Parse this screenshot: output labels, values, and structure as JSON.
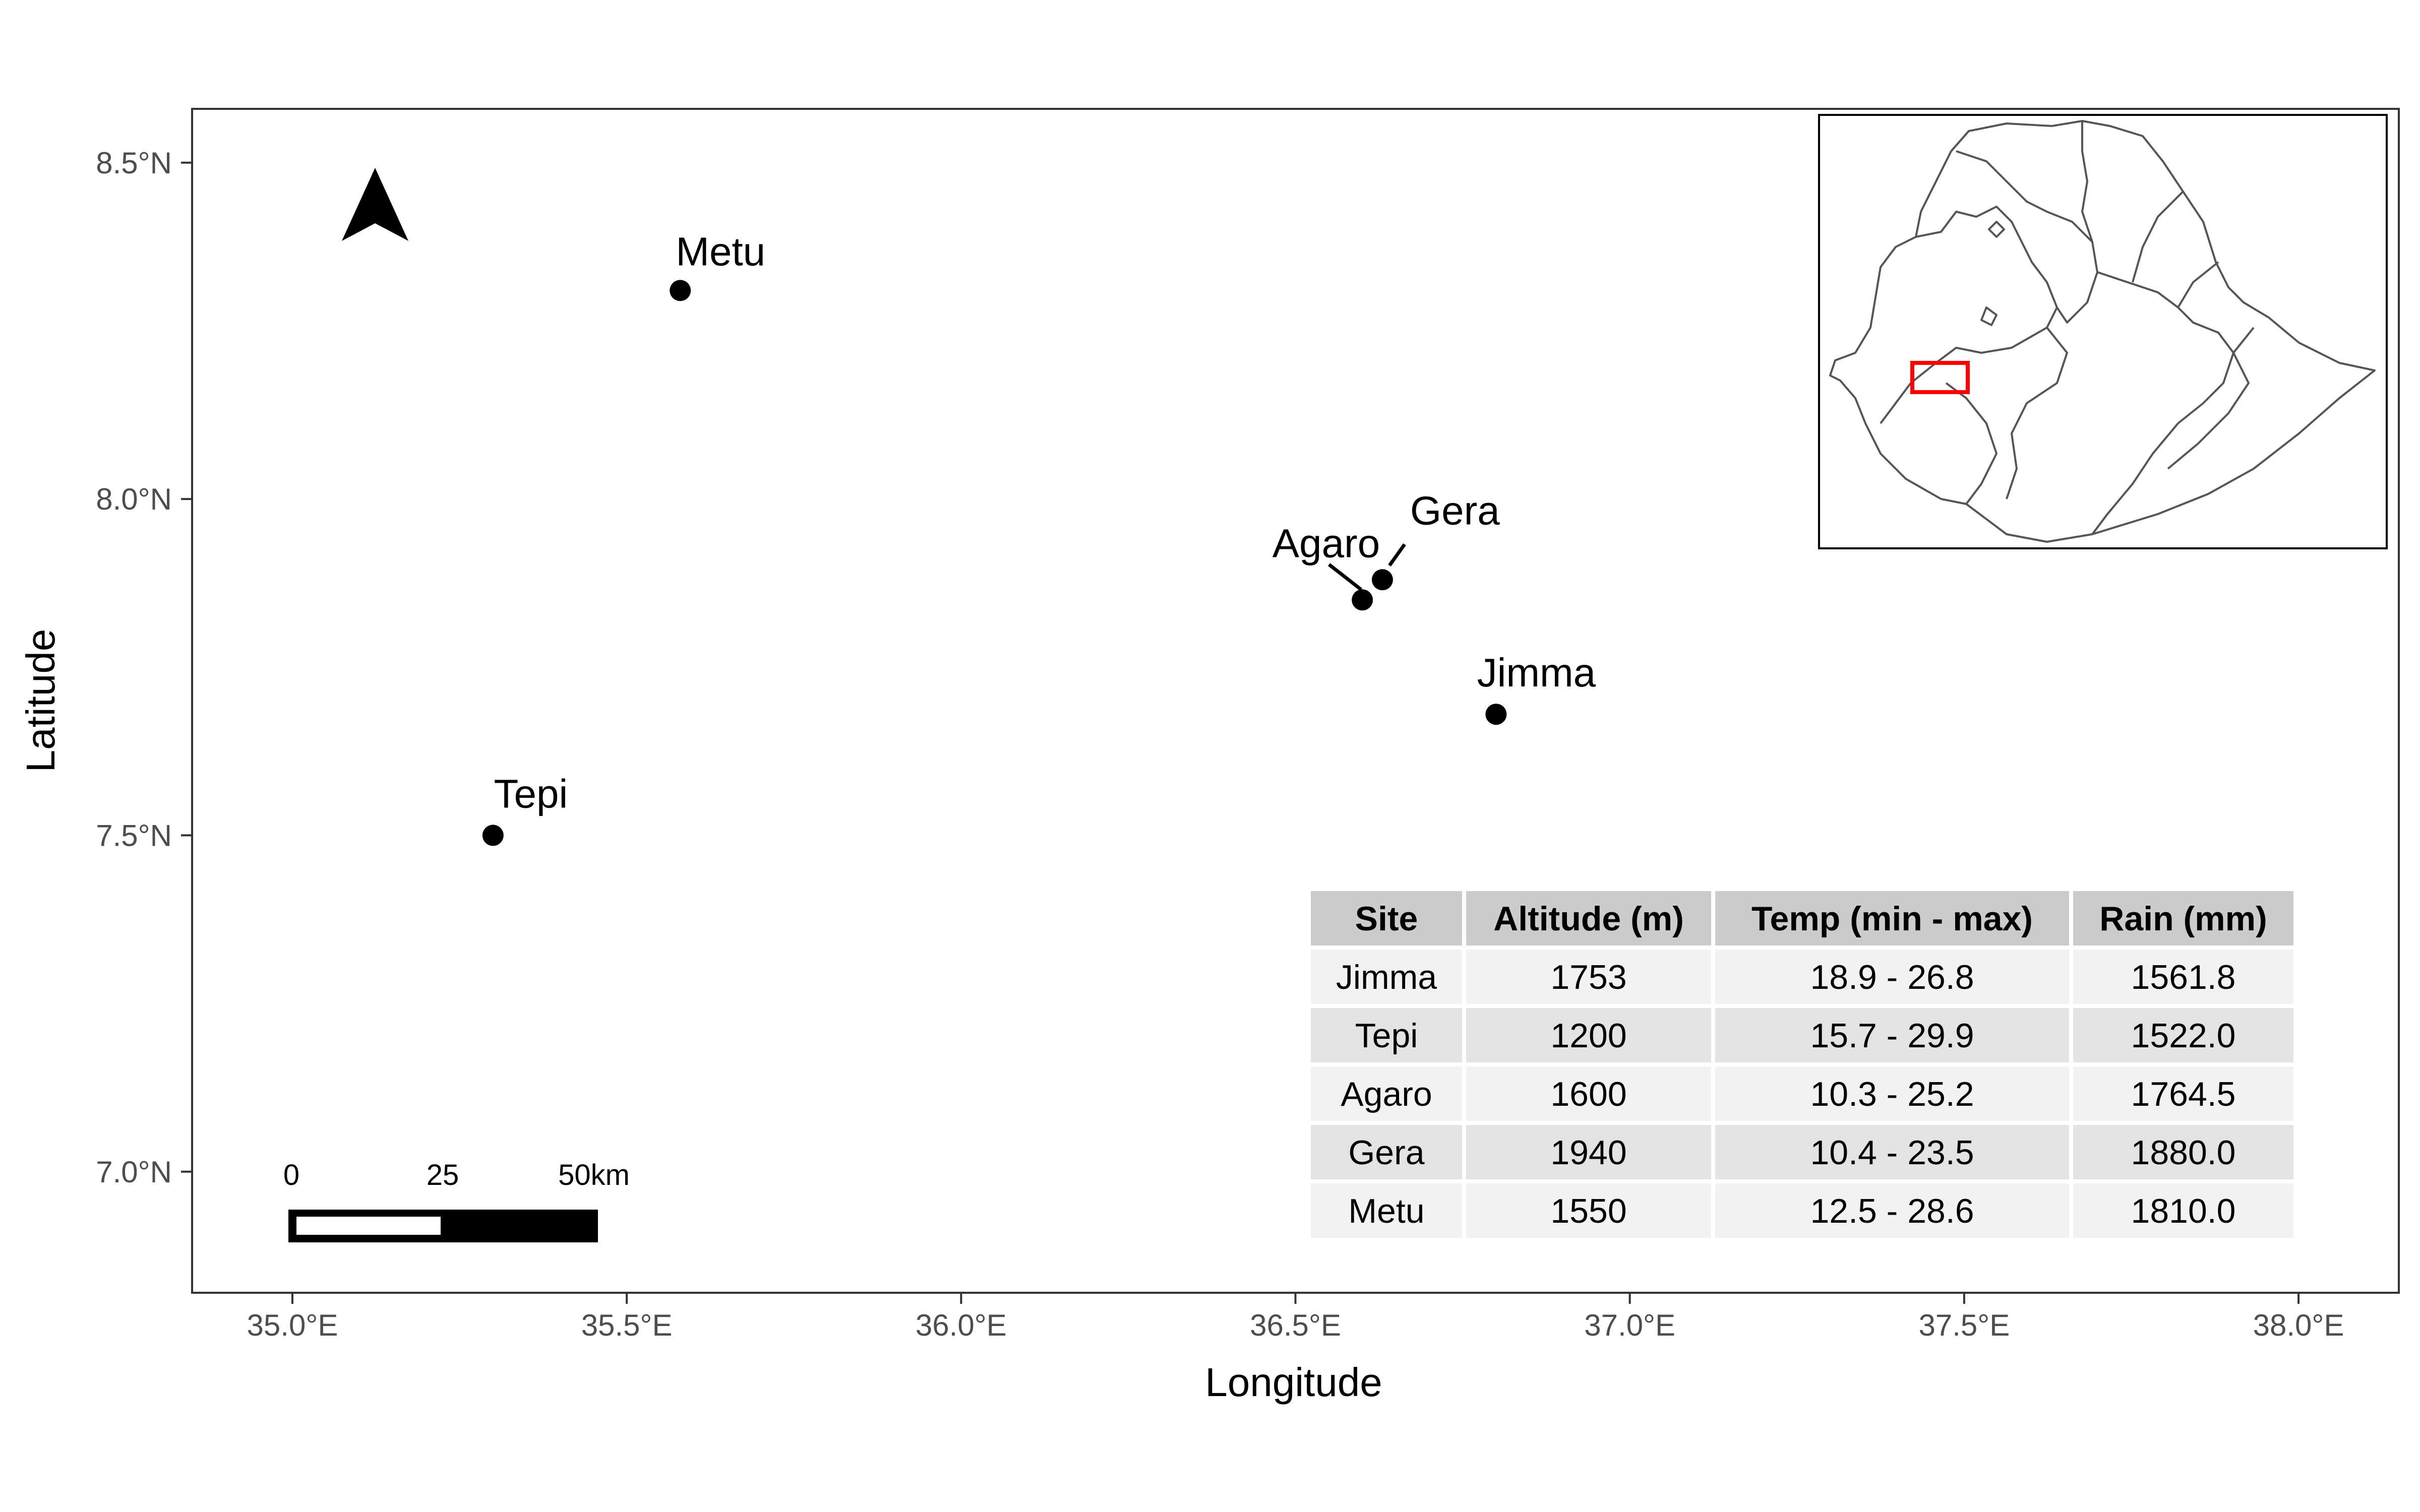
{
  "chart_data": {
    "type": "scatter",
    "xlabel": "Longitude",
    "ylabel": "Latitude",
    "xlim": [
      34.85,
      38.15
    ],
    "ylim": [
      6.82,
      8.58
    ],
    "x_ticks": [
      35.0,
      35.5,
      36.0,
      36.5,
      37.0,
      37.5,
      38.0
    ],
    "x_tick_labels": [
      "35.0°E",
      "35.5°E",
      "36.0°E",
      "36.5°E",
      "37.0°E",
      "37.5°E",
      "38.0°E"
    ],
    "y_ticks": [
      7.0,
      7.5,
      8.0,
      8.5
    ],
    "y_tick_labels": [
      "7.0°N",
      "7.5°N",
      "8.0°N",
      "8.5°N"
    ],
    "grid": false,
    "points": [
      {
        "label": "Metu",
        "lon": 35.58,
        "lat": 8.31
      },
      {
        "label": "Agaro",
        "lon": 36.6,
        "lat": 7.85
      },
      {
        "label": "Gera",
        "lon": 36.63,
        "lat": 7.88
      },
      {
        "label": "Jimma",
        "lon": 36.8,
        "lat": 7.68
      },
      {
        "label": "Tepi",
        "lon": 35.3,
        "lat": 7.5
      }
    ],
    "scale_bar": {
      "labels": [
        "0",
        "25",
        "50km"
      ]
    },
    "north_arrow": "north-arrow-icon",
    "inset": {
      "description_icon": "ethiopia-regions-map-icon",
      "highlight_color": "#ff0000"
    },
    "table": {
      "columns": [
        "Site",
        "Altitude (m)",
        "Temp (min - max)",
        "Rain (mm)"
      ],
      "rows": [
        [
          "Jimma",
          "1753",
          "18.9 - 26.8",
          "1561.8"
        ],
        [
          "Tepi",
          "1200",
          "15.7 - 29.9",
          "1522.0"
        ],
        [
          "Agaro",
          "1600",
          "10.3 - 25.2",
          "1764.5"
        ],
        [
          "Gera",
          "1940",
          "10.4 - 23.5",
          "1880.0"
        ],
        [
          "Metu",
          "1550",
          "12.5 - 28.6",
          "1810.0"
        ]
      ]
    }
  }
}
